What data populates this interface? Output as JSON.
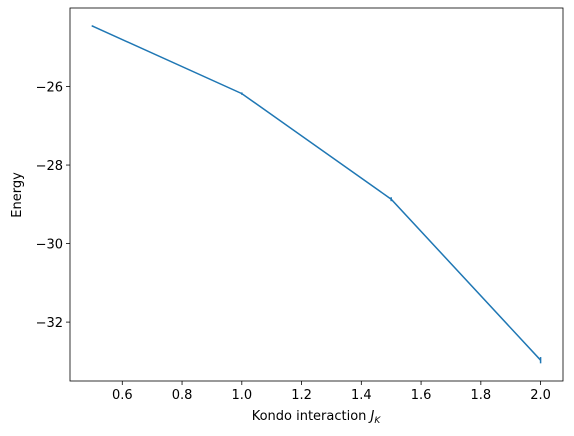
{
  "chart_data": {
    "type": "line",
    "xlabel": {
      "text": "Kondo interaction",
      "symbol": "J",
      "subscript": "K"
    },
    "ylabel": "Energy",
    "x": [
      0.5,
      1.0,
      1.5,
      2.0
    ],
    "series": [
      {
        "color": "#1f77b4",
        "values": [
          -24.46,
          -26.18,
          -28.87,
          -32.97
        ],
        "errors": [
          0.02,
          0.03,
          0.05,
          0.08
        ]
      }
    ],
    "xlim": [
      0.425,
      2.075
    ],
    "ylim": [
      -33.5,
      -24.0
    ],
    "xticks": [
      0.6,
      0.8,
      {
        "value": 1,
        "label": "1.0"
      },
      1.2,
      1.4,
      1.6,
      1.8,
      {
        "value": 2,
        "label": "2.0"
      }
    ],
    "yticks": [
      {
        "value": -32,
        "label": "−32"
      },
      {
        "value": -30,
        "label": "−30"
      },
      {
        "value": -28,
        "label": "−28"
      },
      {
        "value": -26,
        "label": "−26"
      }
    ]
  }
}
